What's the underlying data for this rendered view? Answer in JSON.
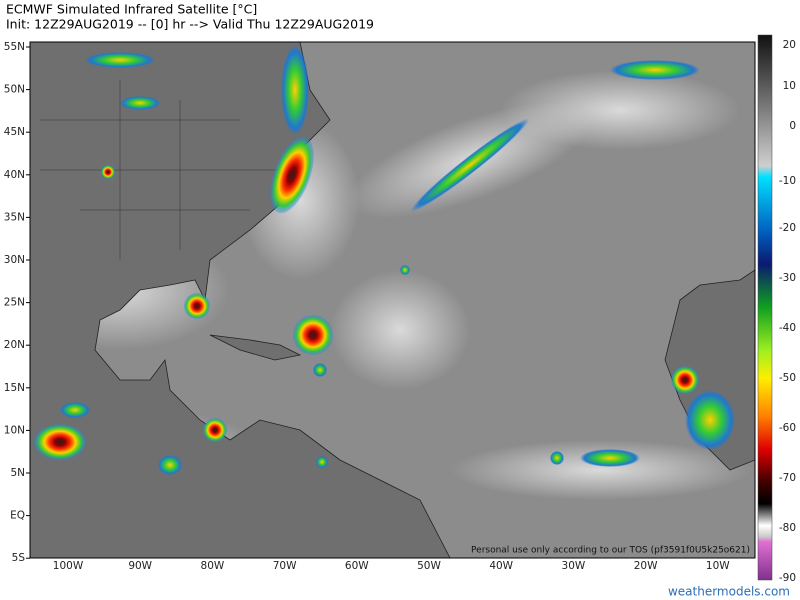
{
  "header": {
    "title": "ECMWF Simulated Infrared Satellite [°C]",
    "subtitle": "Init: 12Z29AUG2019 -- [0] hr --> Valid Thu 12Z29AUG2019"
  },
  "map": {
    "lat_labels": [
      "55N",
      "50N",
      "45N",
      "40N",
      "35N",
      "30N",
      "25N",
      "20N",
      "15N",
      "10N",
      "5N",
      "EQ",
      "5S"
    ],
    "lon_labels": [
      "100W",
      "90W",
      "80W",
      "70W",
      "60W",
      "50W",
      "40W",
      "30W",
      "20W",
      "10W"
    ]
  },
  "colorbar": {
    "labels": [
      "20",
      "10",
      "0",
      "-10",
      "-20",
      "-30",
      "-40",
      "-50",
      "-60",
      "-70",
      "-80",
      "-90"
    ]
  },
  "footer": {
    "tos": "Personal use only according to our TOS (pf3591f0U5k25o621)",
    "site": "weathermodels.com"
  }
}
